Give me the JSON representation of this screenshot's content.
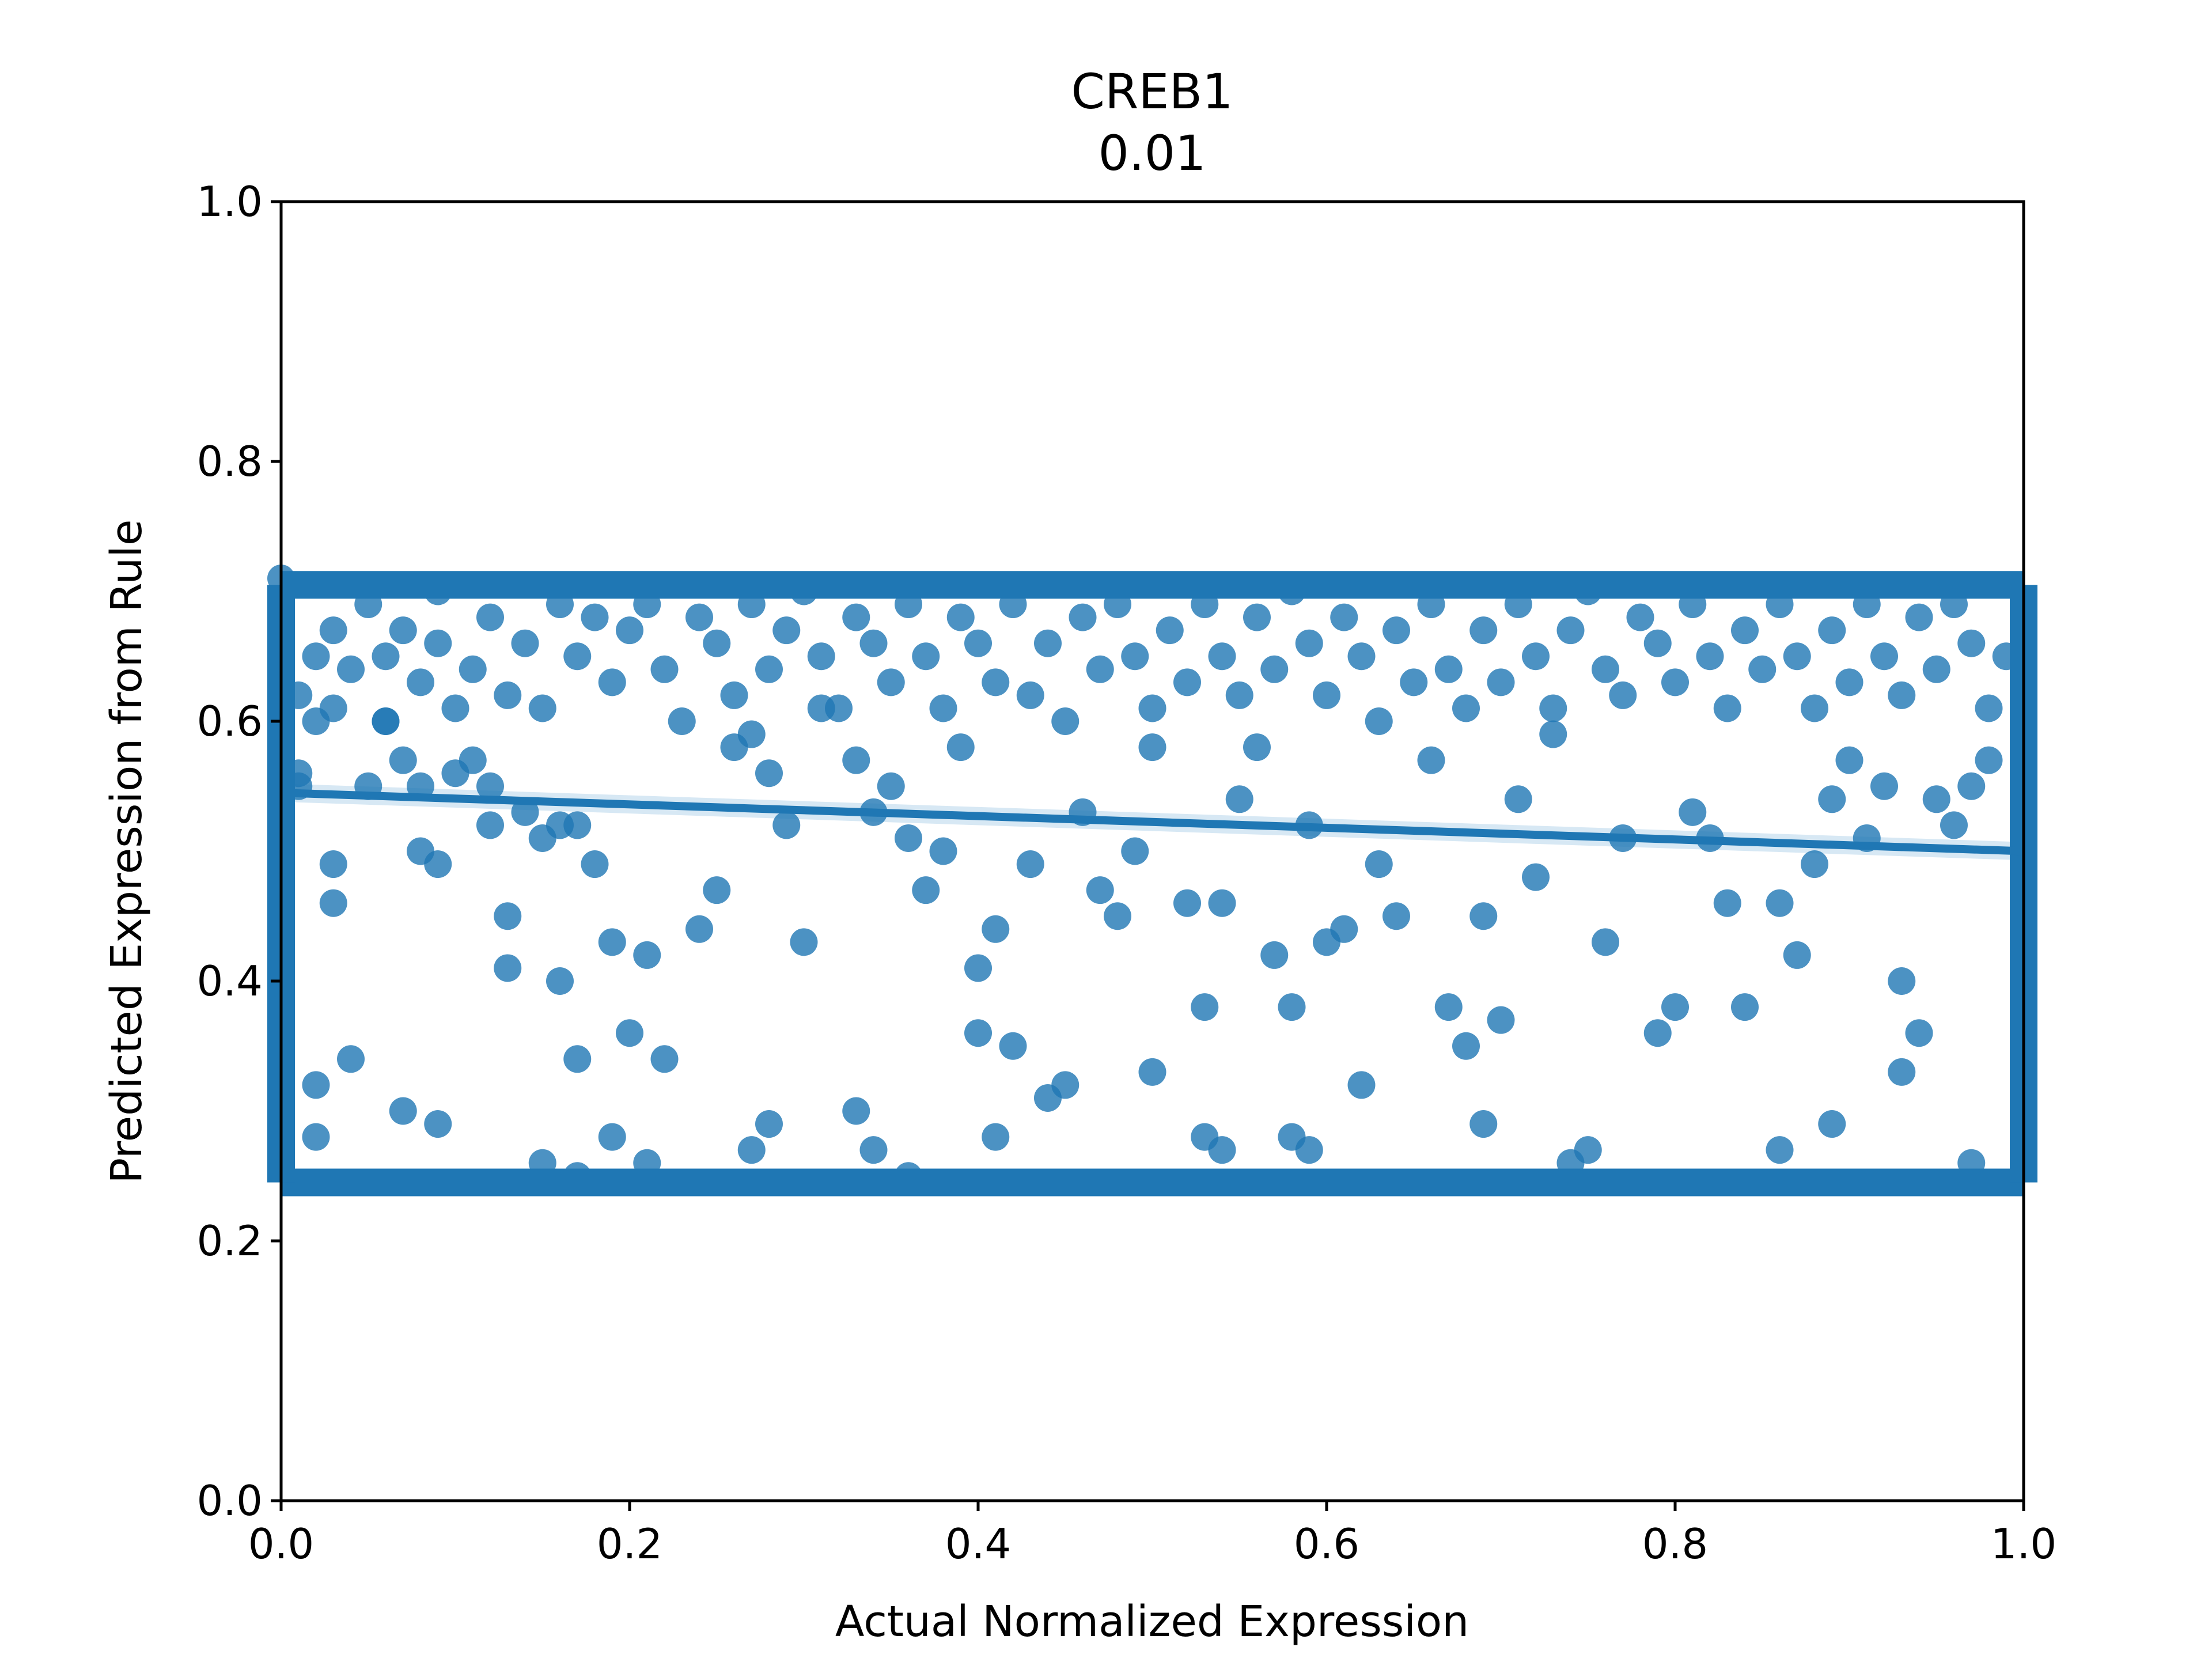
{
  "chart_data": {
    "type": "scatter",
    "title": "CREB1",
    "subtitle": "0.01",
    "xlabel": "Actual Normalized Expression",
    "ylabel": "Predicted Expression from Rule",
    "xlim": [
      0.0,
      1.0
    ],
    "ylim": [
      0.0,
      1.0
    ],
    "xticks": [
      "0.0",
      "0.2",
      "0.4",
      "0.6",
      "0.8",
      "1.0"
    ],
    "yticks": [
      "0.0",
      "0.2",
      "0.4",
      "0.6",
      "0.8",
      "1.0"
    ],
    "grid": false,
    "colors": {
      "points": "#1f77b4",
      "regression": "#1f77b4",
      "confidence_band": "#a6cbe6"
    },
    "series": [
      {
        "type": "scatter",
        "points": [
          [
            0.0,
            0.71
          ],
          [
            0.0,
            0.66
          ],
          [
            0.01,
            0.62
          ],
          [
            0.01,
            0.56
          ],
          [
            0.02,
            0.65
          ],
          [
            0.02,
            0.6
          ],
          [
            0.03,
            0.67
          ],
          [
            0.03,
            0.61
          ],
          [
            0.04,
            0.64
          ],
          [
            0.05,
            0.69
          ],
          [
            0.06,
            0.65
          ],
          [
            0.06,
            0.6
          ],
          [
            0.07,
            0.67
          ],
          [
            0.08,
            0.63
          ],
          [
            0.09,
            0.7
          ],
          [
            0.09,
            0.66
          ],
          [
            0.1,
            0.61
          ],
          [
            0.11,
            0.64
          ],
          [
            0.12,
            0.68
          ],
          [
            0.13,
            0.62
          ],
          [
            0.14,
            0.66
          ],
          [
            0.15,
            0.61
          ],
          [
            0.16,
            0.69
          ],
          [
            0.17,
            0.65
          ],
          [
            0.18,
            0.68
          ],
          [
            0.19,
            0.63
          ],
          [
            0.2,
            0.67
          ],
          [
            0.21,
            0.69
          ],
          [
            0.22,
            0.64
          ],
          [
            0.23,
            0.6
          ],
          [
            0.24,
            0.68
          ],
          [
            0.25,
            0.66
          ],
          [
            0.26,
            0.62
          ],
          [
            0.27,
            0.69
          ],
          [
            0.28,
            0.64
          ],
          [
            0.29,
            0.67
          ],
          [
            0.3,
            0.7
          ],
          [
            0.31,
            0.65
          ],
          [
            0.32,
            0.61
          ],
          [
            0.33,
            0.68
          ],
          [
            0.34,
            0.66
          ],
          [
            0.35,
            0.63
          ],
          [
            0.36,
            0.69
          ],
          [
            0.37,
            0.65
          ],
          [
            0.38,
            0.61
          ],
          [
            0.39,
            0.68
          ],
          [
            0.4,
            0.66
          ],
          [
            0.41,
            0.63
          ],
          [
            0.42,
            0.69
          ],
          [
            0.43,
            0.62
          ],
          [
            0.44,
            0.66
          ],
          [
            0.45,
            0.6
          ],
          [
            0.46,
            0.68
          ],
          [
            0.47,
            0.64
          ],
          [
            0.48,
            0.69
          ],
          [
            0.49,
            0.65
          ],
          [
            0.5,
            0.61
          ],
          [
            0.51,
            0.67
          ],
          [
            0.52,
            0.63
          ],
          [
            0.53,
            0.69
          ],
          [
            0.54,
            0.65
          ],
          [
            0.55,
            0.62
          ],
          [
            0.56,
            0.68
          ],
          [
            0.57,
            0.64
          ],
          [
            0.58,
            0.7
          ],
          [
            0.59,
            0.66
          ],
          [
            0.6,
            0.62
          ],
          [
            0.61,
            0.68
          ],
          [
            0.62,
            0.65
          ],
          [
            0.63,
            0.6
          ],
          [
            0.64,
            0.67
          ],
          [
            0.65,
            0.63
          ],
          [
            0.66,
            0.69
          ],
          [
            0.67,
            0.64
          ],
          [
            0.68,
            0.61
          ],
          [
            0.69,
            0.67
          ],
          [
            0.7,
            0.63
          ],
          [
            0.71,
            0.69
          ],
          [
            0.72,
            0.65
          ],
          [
            0.73,
            0.61
          ],
          [
            0.74,
            0.67
          ],
          [
            0.75,
            0.7
          ],
          [
            0.76,
            0.64
          ],
          [
            0.77,
            0.62
          ],
          [
            0.78,
            0.68
          ],
          [
            0.79,
            0.66
          ],
          [
            0.8,
            0.63
          ],
          [
            0.81,
            0.69
          ],
          [
            0.82,
            0.65
          ],
          [
            0.83,
            0.61
          ],
          [
            0.84,
            0.67
          ],
          [
            0.85,
            0.64
          ],
          [
            0.86,
            0.69
          ],
          [
            0.87,
            0.65
          ],
          [
            0.88,
            0.61
          ],
          [
            0.89,
            0.67
          ],
          [
            0.9,
            0.63
          ],
          [
            0.91,
            0.69
          ],
          [
            0.92,
            0.65
          ],
          [
            0.93,
            0.62
          ],
          [
            0.94,
            0.68
          ],
          [
            0.95,
            0.64
          ],
          [
            0.96,
            0.69
          ],
          [
            0.97,
            0.66
          ],
          [
            0.98,
            0.61
          ],
          [
            0.99,
            0.65
          ],
          [
            1.0,
            0.68
          ],
          [
            0.01,
            0.55
          ],
          [
            0.03,
            0.49
          ],
          [
            0.03,
            0.46
          ],
          [
            0.04,
            0.34
          ],
          [
            0.02,
            0.32
          ],
          [
            0.05,
            0.55
          ],
          [
            0.06,
            0.6
          ],
          [
            0.07,
            0.57
          ],
          [
            0.08,
            0.55
          ],
          [
            0.08,
            0.5
          ],
          [
            0.09,
            0.49
          ],
          [
            0.1,
            0.56
          ],
          [
            0.11,
            0.57
          ],
          [
            0.12,
            0.55
          ],
          [
            0.12,
            0.52
          ],
          [
            0.13,
            0.41
          ],
          [
            0.13,
            0.45
          ],
          [
            0.14,
            0.53
          ],
          [
            0.15,
            0.51
          ],
          [
            0.16,
            0.52
          ],
          [
            0.17,
            0.52
          ],
          [
            0.18,
            0.49
          ],
          [
            0.16,
            0.4
          ],
          [
            0.17,
            0.34
          ],
          [
            0.19,
            0.43
          ],
          [
            0.2,
            0.36
          ],
          [
            0.21,
            0.42
          ],
          [
            0.22,
            0.34
          ],
          [
            0.24,
            0.44
          ],
          [
            0.25,
            0.47
          ],
          [
            0.26,
            0.58
          ],
          [
            0.27,
            0.59
          ],
          [
            0.28,
            0.56
          ],
          [
            0.29,
            0.52
          ],
          [
            0.3,
            0.43
          ],
          [
            0.31,
            0.61
          ],
          [
            0.33,
            0.57
          ],
          [
            0.34,
            0.53
          ],
          [
            0.35,
            0.55
          ],
          [
            0.36,
            0.51
          ],
          [
            0.37,
            0.47
          ],
          [
            0.38,
            0.5
          ],
          [
            0.39,
            0.58
          ],
          [
            0.4,
            0.36
          ],
          [
            0.4,
            0.41
          ],
          [
            0.41,
            0.44
          ],
          [
            0.42,
            0.35
          ],
          [
            0.43,
            0.49
          ],
          [
            0.44,
            0.31
          ],
          [
            0.46,
            0.53
          ],
          [
            0.47,
            0.47
          ],
          [
            0.48,
            0.45
          ],
          [
            0.49,
            0.5
          ],
          [
            0.5,
            0.58
          ],
          [
            0.5,
            0.33
          ],
          [
            0.52,
            0.46
          ],
          [
            0.53,
            0.38
          ],
          [
            0.54,
            0.46
          ],
          [
            0.55,
            0.54
          ],
          [
            0.56,
            0.58
          ],
          [
            0.57,
            0.42
          ],
          [
            0.58,
            0.38
          ],
          [
            0.59,
            0.52
          ],
          [
            0.6,
            0.43
          ],
          [
            0.61,
            0.44
          ],
          [
            0.63,
            0.49
          ],
          [
            0.64,
            0.45
          ],
          [
            0.66,
            0.57
          ],
          [
            0.67,
            0.38
          ],
          [
            0.68,
            0.35
          ],
          [
            0.69,
            0.45
          ],
          [
            0.7,
            0.37
          ],
          [
            0.71,
            0.54
          ],
          [
            0.72,
            0.48
          ],
          [
            0.73,
            0.59
          ],
          [
            0.76,
            0.43
          ],
          [
            0.77,
            0.51
          ],
          [
            0.79,
            0.36
          ],
          [
            0.8,
            0.38
          ],
          [
            0.81,
            0.53
          ],
          [
            0.82,
            0.51
          ],
          [
            0.83,
            0.46
          ],
          [
            0.84,
            0.38
          ],
          [
            0.86,
            0.46
          ],
          [
            0.87,
            0.42
          ],
          [
            0.88,
            0.49
          ],
          [
            0.89,
            0.54
          ],
          [
            0.9,
            0.57
          ],
          [
            0.91,
            0.51
          ],
          [
            0.92,
            0.55
          ],
          [
            0.93,
            0.4
          ],
          [
            0.94,
            0.36
          ],
          [
            0.95,
            0.54
          ],
          [
            0.96,
            0.52
          ],
          [
            0.97,
            0.55
          ],
          [
            0.98,
            0.57
          ],
          [
            0.02,
            0.28
          ],
          [
            0.07,
            0.3
          ],
          [
            0.09,
            0.29
          ],
          [
            0.15,
            0.26
          ],
          [
            0.17,
            0.25
          ],
          [
            0.19,
            0.28
          ],
          [
            0.21,
            0.26
          ],
          [
            0.27,
            0.27
          ],
          [
            0.28,
            0.29
          ],
          [
            0.33,
            0.3
          ],
          [
            0.34,
            0.27
          ],
          [
            0.36,
            0.25
          ],
          [
            0.41,
            0.28
          ],
          [
            0.45,
            0.32
          ],
          [
            0.53,
            0.28
          ],
          [
            0.54,
            0.27
          ],
          [
            0.58,
            0.28
          ],
          [
            0.59,
            0.27
          ],
          [
            0.62,
            0.32
          ],
          [
            0.69,
            0.29
          ],
          [
            0.74,
            0.26
          ],
          [
            0.75,
            0.27
          ],
          [
            0.86,
            0.27
          ],
          [
            0.89,
            0.29
          ],
          [
            0.93,
            0.33
          ],
          [
            0.97,
            0.26
          ]
        ]
      },
      {
        "type": "dense_band",
        "y": 0.705,
        "x_range": [
          0.0,
          1.0
        ]
      },
      {
        "type": "dense_band",
        "y": 0.245,
        "x_range": [
          0.0,
          1.0
        ]
      },
      {
        "type": "dense_column",
        "x": 0.0,
        "y_range": [
          0.245,
          0.705
        ]
      },
      {
        "type": "dense_column",
        "x": 1.0,
        "y_range": [
          0.245,
          0.705
        ]
      }
    ],
    "regression_line": {
      "x": [
        0.0,
        1.0
      ],
      "y": [
        0.545,
        0.5
      ]
    },
    "confidence_band": {
      "x": [
        0.0,
        1.0
      ],
      "y_lower": [
        0.538,
        0.493
      ],
      "y_upper": [
        0.552,
        0.507
      ]
    }
  }
}
